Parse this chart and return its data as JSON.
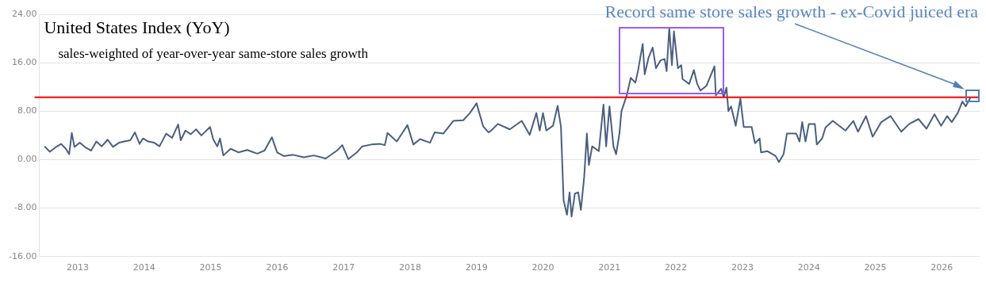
{
  "chart_data": {
    "type": "line",
    "title": "United States Index (YoY)",
    "subtitle": "sales-weighted of year-over-year same-store sales growth",
    "annotations": [
      "Record same store sales growth - ex-Covid juiced era"
    ],
    "x": [
      2012.5,
      2012.58,
      2012.66,
      2012.75,
      2012.82,
      2012.87,
      2012.91,
      2012.95,
      2013.03,
      2013.12,
      2013.2,
      2013.28,
      2013.36,
      2013.45,
      2013.53,
      2013.62,
      2013.7,
      2013.79,
      2013.86,
      2013.93,
      2013.98,
      2014.06,
      2014.15,
      2014.23,
      2014.33,
      2014.42,
      2014.51,
      2014.55,
      2014.62,
      2014.7,
      2014.78,
      2014.86,
      2014.99,
      2015.04,
      2015.1,
      2015.14,
      2015.19,
      2015.3,
      2015.42,
      2015.55,
      2015.7,
      2015.81,
      2015.92,
      2016.0,
      2016.1,
      2016.24,
      2016.4,
      2016.55,
      2016.73,
      2016.9,
      2016.98,
      2017.07,
      2017.2,
      2017.28,
      2017.42,
      2017.55,
      2017.62,
      2017.66,
      2017.8,
      2017.96,
      2018.05,
      2018.15,
      2018.3,
      2018.37,
      2018.5,
      2018.65,
      2018.8,
      2018.9,
      2019.0,
      2019.1,
      2019.18,
      2019.22,
      2019.32,
      2019.5,
      2019.68,
      2019.8,
      2019.9,
      2019.95,
      2020.0,
      2020.05,
      2020.15,
      2020.22,
      2020.27,
      2020.31,
      2020.36,
      2020.4,
      2020.43,
      2020.48,
      2020.53,
      2020.57,
      2020.62,
      2020.66,
      2020.69,
      2020.74,
      2020.84,
      2020.91,
      2020.95,
      2021.0,
      2021.06,
      2021.1,
      2021.15,
      2021.18,
      2021.26,
      2021.32,
      2021.39,
      2021.43,
      2021.5,
      2021.53,
      2021.59,
      2021.65,
      2021.7,
      2021.77,
      2021.83,
      2021.86,
      2021.9,
      2021.94,
      2021.97,
      2022.03,
      2022.08,
      2022.1,
      2022.2,
      2022.27,
      2022.32,
      2022.37,
      2022.46,
      2022.58,
      2022.6,
      2022.68,
      2022.72,
      2022.76,
      2022.79,
      2022.83,
      2022.9,
      2022.97,
      2023.02,
      2023.14,
      2023.19,
      2023.26,
      2023.28,
      2023.38,
      2023.5,
      2023.55,
      2023.62,
      2023.67,
      2023.81,
      2023.86,
      2023.9,
      2023.95,
      2024.0,
      2024.09,
      2024.12,
      2024.2,
      2024.25,
      2024.36,
      2024.55,
      2024.67,
      2024.74,
      2024.86,
      2024.96,
      2025.09,
      2025.23,
      2025.39,
      2025.51,
      2025.65,
      2025.77,
      2025.89,
      2025.99,
      2026.08,
      2026.15,
      2026.24,
      2026.31,
      2026.36,
      2026.43
    ],
    "series": [
      {
        "color": "#4a5f80",
        "values": [
          2.2,
          1.3,
          2.0,
          2.6,
          1.8,
          0.9,
          4.4,
          2.1,
          2.8,
          2.0,
          1.5,
          3.0,
          2.2,
          3.3,
          2.1,
          2.8,
          3.0,
          3.2,
          4.5,
          2.6,
          3.5,
          3.0,
          2.8,
          2.2,
          4.3,
          3.6,
          5.8,
          3.2,
          4.8,
          4.2,
          5.0,
          4.0,
          5.4,
          3.3,
          2.2,
          3.5,
          0.7,
          1.8,
          1.2,
          1.6,
          1.0,
          1.5,
          3.7,
          1.2,
          0.6,
          0.8,
          0.4,
          0.7,
          0.2,
          1.5,
          2.4,
          0.1,
          1.2,
          2.2,
          2.5,
          2.6,
          2.4,
          4.4,
          3.0,
          5.7,
          2.5,
          3.4,
          2.8,
          4.5,
          4.3,
          6.4,
          6.5,
          7.7,
          9.3,
          5.5,
          4.5,
          4.8,
          5.9,
          5.0,
          6.4,
          4.1,
          7.7,
          4.8,
          7.7,
          4.8,
          5.6,
          8.9,
          5.4,
          -6.7,
          -9.1,
          -5.4,
          -9.4,
          -5.6,
          -5.4,
          -8.3,
          -2.8,
          4.3,
          -0.9,
          2.2,
          1.4,
          9.1,
          2.2,
          8.8,
          2.2,
          0.9,
          4.3,
          8.0,
          10.6,
          13.5,
          12.7,
          14.7,
          19.1,
          14.1,
          16.9,
          18.5,
          15.1,
          16.4,
          16.6,
          14.6,
          21.7,
          15.6,
          21.2,
          15.1,
          15.6,
          13.3,
          12.5,
          14.8,
          12.5,
          11.4,
          12.2,
          15.4,
          10.6,
          11.7,
          10.3,
          11.9,
          8.0,
          8.8,
          5.6,
          10.1,
          5.4,
          5.4,
          2.7,
          3.5,
          1.2,
          1.4,
          0.6,
          -0.4,
          0.9,
          4.3,
          4.3,
          3.0,
          6.2,
          3.0,
          5.9,
          5.9,
          2.5,
          3.5,
          5.3,
          6.4,
          4.8,
          6.4,
          4.6,
          7.2,
          3.8,
          6.2,
          7.2,
          4.6,
          5.9,
          6.7,
          5.1,
          7.5,
          5.6,
          7.2,
          6.2,
          7.7,
          9.6,
          8.8,
          10.2
        ]
      }
    ],
    "xlim": [
      2012.42,
      2026.57
    ],
    "xticks": [
      2013,
      2014,
      2015,
      2016,
      2017,
      2018,
      2019,
      2020,
      2021,
      2022,
      2023,
      2024,
      2025,
      2026
    ],
    "ylim": [
      -16,
      24
    ],
    "yticks": [
      {
        "value": -16,
        "label": "-16.00"
      },
      {
        "value": -8,
        "label": "-8.00"
      },
      {
        "value": 0,
        "label": "0.00"
      },
      {
        "value": 8,
        "label": "8.00"
      },
      {
        "value": 16,
        "label": "16.00"
      },
      {
        "value": 24,
        "label": "24.00"
      }
    ],
    "ref_lines": [
      {
        "axis": "y",
        "value": 10.3,
        "color": "#ff0000"
      }
    ],
    "grid": "y",
    "legend": false,
    "marker": "none",
    "line_style": "solid"
  }
}
